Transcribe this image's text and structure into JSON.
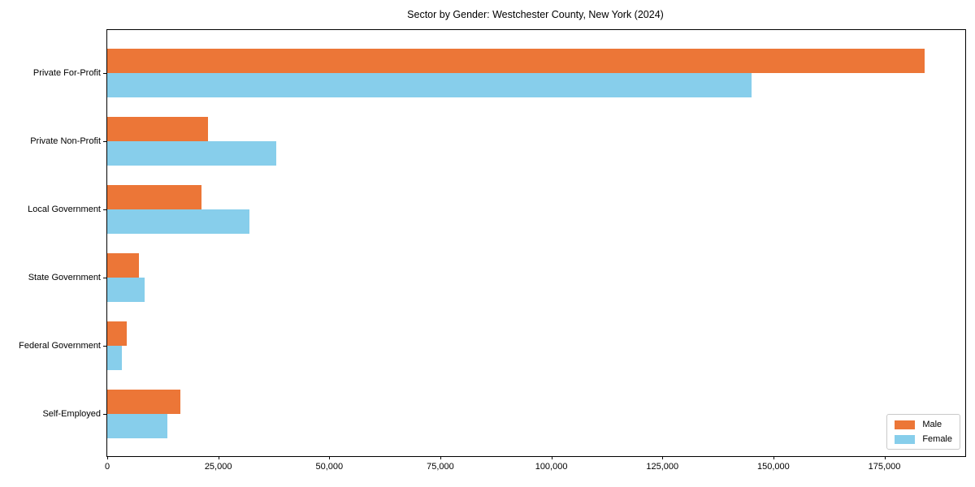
{
  "title": "Sector by Gender: Westchester County, New York (2024)",
  "chart_data": {
    "type": "bar",
    "orientation": "horizontal",
    "title": "Sector by Gender: Westchester County, New York (2024)",
    "categories": [
      "Private For-Profit",
      "Private Non-Profit",
      "Local Government",
      "State Government",
      "Federal Government",
      "Self-Employed"
    ],
    "series": [
      {
        "name": "Male",
        "color": "#ec7637",
        "values": [
          184000,
          22700,
          21300,
          7200,
          4400,
          16500
        ]
      },
      {
        "name": "Female",
        "color": "#87ceeb",
        "values": [
          145000,
          38000,
          32000,
          8400,
          3300,
          13600
        ]
      }
    ],
    "xlabel": "",
    "ylabel": "",
    "xlim": [
      0,
      193200
    ],
    "x_ticks": [
      0,
      25000,
      50000,
      75000,
      100000,
      125000,
      150000,
      175000
    ],
    "x_tick_labels": [
      "0",
      "25,000",
      "50,000",
      "75,000",
      "100,000",
      "125,000",
      "150,000",
      "175,000"
    ],
    "grid": false,
    "legend_position": "lower right"
  }
}
